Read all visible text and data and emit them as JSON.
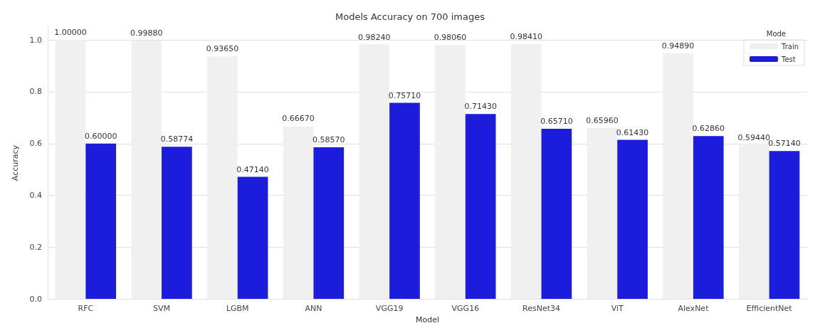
{
  "chart_data": {
    "type": "bar",
    "title": "Models Accuracy on 700 images",
    "xlabel": "Model",
    "ylabel": "Accuracy",
    "legend_title": "Mode",
    "categories": [
      "RFC",
      "SVM",
      "LGBM",
      "ANN",
      "VGG19",
      "VGG16",
      "ResNet34",
      "ViT",
      "AlexNet",
      "EfficientNet"
    ],
    "series": [
      {
        "name": "Train",
        "color": "#f0f0f0",
        "values": [
          1.0,
          0.9988,
          0.9365,
          0.6667,
          0.9824,
          0.9806,
          0.9841,
          0.6596,
          0.9489,
          0.5944
        ],
        "value_labels": [
          "1.00000",
          "0.99880",
          "0.93650",
          "0.66670",
          "0.98240",
          "0.98060",
          "0.98410",
          "0.65960",
          "0.94890",
          "0.59440"
        ]
      },
      {
        "name": "Test",
        "color": "#1c1cdc",
        "values": [
          0.6,
          0.58774,
          0.4714,
          0.5857,
          0.7571,
          0.7143,
          0.6571,
          0.6143,
          0.6286,
          0.5714
        ],
        "value_labels": [
          "0.60000",
          "0.58774",
          "0.47140",
          "0.58570",
          "0.75710",
          "0.71430",
          "0.65710",
          "0.61430",
          "0.62860",
          "0.57140"
        ]
      }
    ],
    "ylim": [
      0,
      1.05
    ],
    "yticks": [
      {
        "value": 0,
        "label": "0.0"
      },
      {
        "value": 0.2,
        "label": "0.2"
      },
      {
        "value": 0.4,
        "label": "0.4"
      },
      {
        "value": 0.6,
        "label": "0.6"
      },
      {
        "value": 0.8,
        "label": "0.8"
      },
      {
        "value": 1,
        "label": "1.0"
      }
    ],
    "grid": "y",
    "legend": "top right"
  }
}
